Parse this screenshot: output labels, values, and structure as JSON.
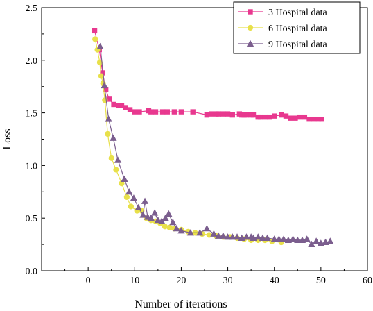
{
  "chart_data": {
    "type": "line",
    "title": "",
    "xlabel": "Number of iterations",
    "ylabel": "Loss",
    "xlim": [
      -10,
      60
    ],
    "ylim": [
      0.0,
      2.5
    ],
    "xticks": [
      0,
      10,
      20,
      30,
      40,
      50,
      60
    ],
    "yticks": [
      0.0,
      0.5,
      1.0,
      1.5,
      2.0,
      2.5
    ],
    "xtick_labels": [
      "0",
      "10",
      "20",
      "30",
      "40",
      "50",
      "60"
    ],
    "ytick_labels": [
      "0.0",
      "0.5",
      "1.0",
      "1.5",
      "2.0",
      "2.5"
    ],
    "grid": false,
    "legend_position": "top-right",
    "series": [
      {
        "name": "3 Hospital data",
        "color": "#e8388f",
        "marker": "square",
        "x": [
          1.4,
          2.4,
          3.1,
          3.8,
          4.5,
          5.5,
          6.5,
          7.2,
          8.0,
          9.0,
          10.0,
          11.0,
          13.0,
          13.5,
          14.5,
          16.0,
          17.0,
          18.5,
          20.0,
          22.5,
          25.5,
          26.5,
          27.5,
          28.0,
          29.0,
          30.0,
          31.0,
          32.5,
          33.0,
          33.5,
          34.0,
          35.0,
          35.5,
          36.5,
          37.0,
          38.0,
          39.0,
          40.0,
          41.5,
          42.5,
          43.5,
          44.5,
          45.5,
          46.5,
          47.5,
          48.5,
          49.5,
          50.2
        ],
        "y": [
          2.28,
          2.1,
          1.88,
          1.72,
          1.63,
          1.58,
          1.57,
          1.57,
          1.55,
          1.53,
          1.51,
          1.51,
          1.52,
          1.51,
          1.51,
          1.51,
          1.51,
          1.51,
          1.51,
          1.51,
          1.48,
          1.49,
          1.49,
          1.49,
          1.49,
          1.49,
          1.48,
          1.49,
          1.48,
          1.48,
          1.48,
          1.48,
          1.48,
          1.46,
          1.46,
          1.46,
          1.46,
          1.47,
          1.48,
          1.47,
          1.45,
          1.45,
          1.46,
          1.46,
          1.44,
          1.44,
          1.44,
          1.44
        ]
      },
      {
        "name": "6 Hospital data",
        "color": "#e8e04a",
        "marker": "circle",
        "x": [
          1.5,
          2.0,
          2.5,
          2.8,
          3.2,
          3.6,
          4.2,
          5.0,
          6.0,
          7.2,
          8.3,
          9.2,
          10.5,
          11.5,
          12.5,
          13.5,
          14.5,
          15.5,
          16.5,
          17.5,
          18.5,
          20.0,
          21.5,
          23.0,
          24.5,
          26.0,
          27.5,
          29.0,
          30.5,
          32.0,
          33.5,
          35.0,
          36.5,
          38.0,
          39.5,
          41.5
        ],
        "y": [
          2.2,
          2.1,
          1.98,
          1.85,
          1.78,
          1.62,
          1.3,
          1.07,
          0.96,
          0.83,
          0.7,
          0.61,
          0.57,
          0.57,
          0.5,
          0.48,
          0.47,
          0.45,
          0.42,
          0.41,
          0.4,
          0.39,
          0.37,
          0.36,
          0.35,
          0.34,
          0.33,
          0.32,
          0.32,
          0.31,
          0.3,
          0.29,
          0.29,
          0.29,
          0.28,
          0.27
        ]
      },
      {
        "name": "9 Hospital data",
        "color": "#7b5e8e",
        "marker": "triangle",
        "x": [
          2.6,
          3.5,
          4.4,
          5.4,
          6.4,
          7.8,
          8.8,
          9.8,
          10.8,
          11.8,
          12.2,
          12.8,
          13.5,
          14.3,
          15.0,
          15.8,
          16.6,
          17.3,
          18.2,
          19.0,
          20.0,
          22.0,
          24.0,
          25.5,
          27.0,
          28.0,
          29.0,
          30.0,
          31.0,
          32.0,
          33.0,
          34.0,
          35.0,
          35.5,
          36.5,
          37.5,
          38.5,
          40.0,
          41.0,
          42.0,
          43.0,
          44.0,
          45.0,
          46.0,
          47.0,
          48.0,
          49.0,
          50.0,
          51.0,
          52.0
        ],
        "y": [
          2.13,
          1.76,
          1.44,
          1.26,
          1.05,
          0.87,
          0.75,
          0.69,
          0.6,
          0.53,
          0.66,
          0.51,
          0.5,
          0.55,
          0.48,
          0.47,
          0.5,
          0.54,
          0.46,
          0.4,
          0.38,
          0.36,
          0.36,
          0.4,
          0.35,
          0.33,
          0.33,
          0.32,
          0.32,
          0.32,
          0.31,
          0.32,
          0.32,
          0.31,
          0.32,
          0.31,
          0.31,
          0.3,
          0.3,
          0.3,
          0.29,
          0.3,
          0.29,
          0.29,
          0.3,
          0.25,
          0.28,
          0.26,
          0.27,
          0.28
        ]
      }
    ]
  }
}
